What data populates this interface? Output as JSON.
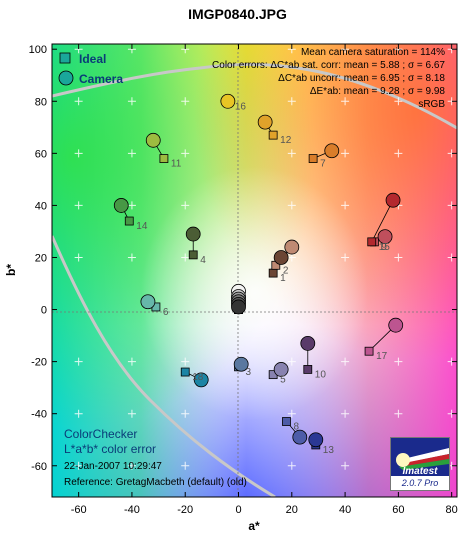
{
  "title": "IMGP0840.JPG",
  "legend": {
    "ideal": "Ideal",
    "camera": "Camera"
  },
  "stats": {
    "line1": "Mean camera saturation = 114%",
    "line2": "Color errors:  ΔC*ab sat. corr:  mean = 5.88 ;  σ = 6.67",
    "line3": "ΔC*ab uncorr:  mean = 6.95 ;  σ = 8.18",
    "line4": "ΔE*ab:  mean = 9.28 ;  σ = 9.98",
    "line5": "sRGB"
  },
  "bottom_left": {
    "line1": "ColorChecker",
    "line2": "L*a*b* color error",
    "date": "22-Jan-2007 10:29:47",
    "reference": "Reference: GretagMacbeth (default) (old)"
  },
  "logo": {
    "brand": "Imatest",
    "version": "2.0.7  Pro"
  },
  "chart_data": {
    "type": "scatter",
    "title": "IMGP0840.JPG",
    "xlabel": "a*",
    "ylabel": "b*",
    "xlim": [
      -70,
      82
    ],
    "ylim": [
      -72,
      102
    ],
    "xticks": [
      -60,
      -40,
      -20,
      0,
      20,
      40,
      60,
      80
    ],
    "yticks": [
      -60,
      -40,
      -20,
      0,
      20,
      40,
      60,
      80,
      100
    ],
    "patches": [
      {
        "n": "1",
        "ideal": [
          13,
          14
        ],
        "camera": [
          16,
          20
        ],
        "color": "#6b4534"
      },
      {
        "n": "2",
        "ideal": [
          14,
          17
        ],
        "camera": [
          20,
          24
        ],
        "color": "#bf8a73"
      },
      {
        "n": "3",
        "ideal": [
          0,
          -22
        ],
        "camera": [
          1,
          -21
        ],
        "color": "#5a78a0"
      },
      {
        "n": "4",
        "ideal": [
          -17,
          21
        ],
        "camera": [
          -17,
          29
        ],
        "color": "#4b5d35"
      },
      {
        "n": "5",
        "ideal": [
          13,
          -25
        ],
        "camera": [
          16,
          -23
        ],
        "color": "#8882b0"
      },
      {
        "n": "6",
        "ideal": [
          -31,
          1
        ],
        "camera": [
          -34,
          3
        ],
        "color": "#66b8aa"
      },
      {
        "n": "7",
        "ideal": [
          28,
          58
        ],
        "camera": [
          35,
          61
        ],
        "color": "#d97d2a"
      },
      {
        "n": "8",
        "ideal": [
          18,
          -43
        ],
        "camera": [
          23,
          -49
        ],
        "color": "#4d5ca8"
      },
      {
        "n": "9",
        "ideal": [
          51,
          26
        ],
        "camera": [
          55,
          28
        ],
        "color": "#c04f5c"
      },
      {
        "n": "10",
        "ideal": [
          26,
          -23
        ],
        "camera": [
          26,
          -13
        ],
        "color": "#5a3b6a"
      },
      {
        "n": "11",
        "ideal": [
          -28,
          58
        ],
        "camera": [
          -32,
          65
        ],
        "color": "#9dbc40"
      },
      {
        "n": "12",
        "ideal": [
          13,
          67
        ],
        "camera": [
          10,
          72
        ],
        "color": "#e0a22a"
      },
      {
        "n": "13",
        "ideal": [
          29,
          -52
        ],
        "camera": [
          29,
          -50
        ],
        "color": "#2b3894"
      },
      {
        "n": "14",
        "ideal": [
          -41,
          34
        ],
        "camera": [
          -44,
          40
        ],
        "color": "#479845"
      },
      {
        "n": "15",
        "ideal": [
          50,
          26
        ],
        "camera": [
          58,
          42
        ],
        "color": "#b3282e"
      },
      {
        "n": "16",
        "ideal": [
          -4,
          80
        ],
        "camera": [
          -4,
          80
        ],
        "color": "#e8c525"
      },
      {
        "n": "17",
        "ideal": [
          49,
          -16
        ],
        "camera": [
          59,
          -6
        ],
        "color": "#bd5590"
      },
      {
        "n": "18",
        "ideal": [
          -20,
          -24
        ],
        "camera": [
          -14,
          -27
        ],
        "color": "#1c85a5"
      },
      {
        "n": "",
        "ideal": [
          0,
          0
        ],
        "camera": [
          0,
          7
        ],
        "color": "#f3f3f2"
      },
      {
        "n": "",
        "ideal": [
          0,
          0
        ],
        "camera": [
          0,
          5
        ],
        "color": "#c8c8c8"
      },
      {
        "n": "",
        "ideal": [
          0,
          0
        ],
        "camera": [
          0,
          4
        ],
        "color": "#a0a0a0"
      },
      {
        "n": "",
        "ideal": [
          0,
          0
        ],
        "camera": [
          0,
          3
        ],
        "color": "#7a7a79"
      },
      {
        "n": "",
        "ideal": [
          0,
          0
        ],
        "camera": [
          0,
          2
        ],
        "color": "#555555"
      },
      {
        "n": "",
        "ideal": [
          0,
          0
        ],
        "camera": [
          0,
          1
        ],
        "color": "#343434"
      }
    ]
  }
}
